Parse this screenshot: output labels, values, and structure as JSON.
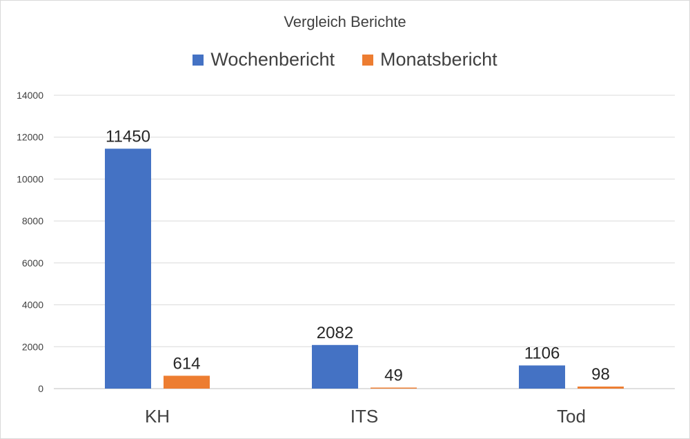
{
  "chart_data": {
    "type": "bar",
    "title": "Vergleich Berichte",
    "categories": [
      "KH",
      "ITS",
      "Tod"
    ],
    "series": [
      {
        "name": "Wochenbericht",
        "color": "#4472c4",
        "values": [
          11450,
          2082,
          1106
        ]
      },
      {
        "name": "Monatsbericht",
        "color": "#ed7d31",
        "values": [
          614,
          49,
          98
        ]
      }
    ],
    "yticks": [
      "0",
      "2000",
      "4000",
      "6000",
      "8000",
      "10000",
      "12000",
      "14000"
    ],
    "ylim": [
      0,
      14000
    ],
    "grid": true,
    "legend_position": "top"
  }
}
